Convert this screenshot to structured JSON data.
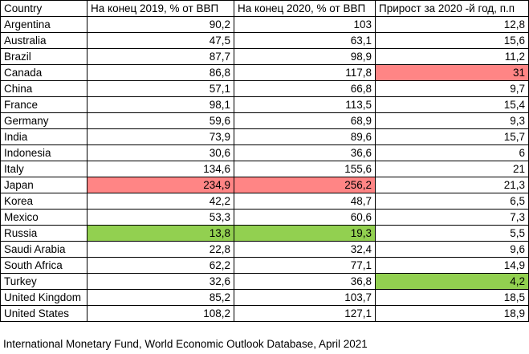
{
  "headers": [
    "Country",
    "На конец  2019, % от ВВП",
    "На конец 2020, % от ВВП",
    "Прирост за 2020 -й год, п.п"
  ],
  "rows": [
    {
      "country": "Argentina",
      "y2019": "90,2",
      "y2020": "103",
      "growth": "12,8"
    },
    {
      "country": "Australia",
      "y2019": "47,5",
      "y2020": "63,1",
      "growth": "15,6"
    },
    {
      "country": "Brazil",
      "y2019": "87,7",
      "y2020": "98,9",
      "growth": "11,2"
    },
    {
      "country": "Canada",
      "y2019": "86,8",
      "y2020": "117,8",
      "growth": "31"
    },
    {
      "country": "China",
      "y2019": "57,1",
      "y2020": "66,8",
      "growth": "9,7"
    },
    {
      "country": "France",
      "y2019": "98,1",
      "y2020": "113,5",
      "growth": "15,4"
    },
    {
      "country": "Germany",
      "y2019": "59,6",
      "y2020": "68,9",
      "growth": "9,3"
    },
    {
      "country": "India",
      "y2019": "73,9",
      "y2020": "89,6",
      "growth": "15,7"
    },
    {
      "country": "Indonesia",
      "y2019": "30,6",
      "y2020": "36,6",
      "growth": "6"
    },
    {
      "country": "Italy",
      "y2019": "134,6",
      "y2020": "155,6",
      "growth": "21"
    },
    {
      "country": "Japan",
      "y2019": "234,9",
      "y2020": "256,2",
      "growth": "21,3"
    },
    {
      "country": "Korea",
      "y2019": "42,2",
      "y2020": "48,7",
      "growth": "6,5"
    },
    {
      "country": "Mexico",
      "y2019": "53,3",
      "y2020": "60,6",
      "growth": "7,3"
    },
    {
      "country": "Russia",
      "y2019": "13,8",
      "y2020": "19,3",
      "growth": "5,5"
    },
    {
      "country": "Saudi Arabia",
      "y2019": "22,8",
      "y2020": "32,4",
      "growth": "9,6"
    },
    {
      "country": "South Africa",
      "y2019": "62,2",
      "y2020": "77,1",
      "growth": "14,9"
    },
    {
      "country": "Turkey",
      "y2019": "32,6",
      "y2020": "36,8",
      "growth": "4,2"
    },
    {
      "country": "United Kingdom",
      "y2019": "85,2",
      "y2020": "103,7",
      "growth": "18,5"
    },
    {
      "country": "United States",
      "y2019": "108,2",
      "y2020": "127,1",
      "growth": "18,9"
    }
  ],
  "highlights": [
    {
      "row": 3,
      "col": "growth",
      "color": "#ff8585"
    },
    {
      "row": 10,
      "col": "y2019",
      "color": "#ff8585"
    },
    {
      "row": 10,
      "col": "y2020",
      "color": "#ff8585"
    },
    {
      "row": 13,
      "col": "y2019",
      "color": "#92d050"
    },
    {
      "row": 13,
      "col": "y2020",
      "color": "#92d050"
    },
    {
      "row": 16,
      "col": "growth",
      "color": "#92d050"
    }
  ],
  "source": "International Monetary Fund, World Economic Outlook Database, April 2021"
}
